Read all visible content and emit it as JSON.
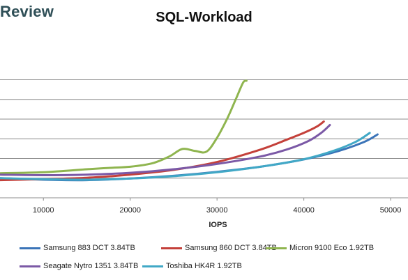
{
  "header": {
    "brand": "Review"
  },
  "chart_data": {
    "type": "line",
    "title": "SQL-Workload",
    "xlabel": "IOPS",
    "ylabel": "",
    "xlim": [
      5000,
      52000
    ],
    "ylim": [
      0,
      8
    ],
    "xticks": [
      10000,
      20000,
      30000,
      40000,
      50000
    ],
    "yticks": [
      1,
      2,
      3,
      4,
      5,
      6
    ],
    "grid": "horizontal",
    "legend_position": "bottom",
    "series": [
      {
        "name": "Samsung 883 DCT 3.84TB",
        "color": "#3b74b8",
        "x": [
          5000,
          10000,
          15000,
          20000,
          25000,
          30000,
          35000,
          40000,
          44000,
          47000,
          48500
        ],
        "y": [
          1.0,
          0.92,
          0.9,
          0.98,
          1.12,
          1.32,
          1.58,
          1.95,
          2.38,
          2.85,
          3.22
        ]
      },
      {
        "name": "Samsung 860 DCT 3.84TB",
        "color": "#c4403a",
        "x": [
          5000,
          10000,
          15000,
          20000,
          25000,
          30000,
          35000,
          38000,
          40000,
          41500,
          42300
        ],
        "y": [
          0.9,
          0.95,
          1.02,
          1.18,
          1.42,
          1.82,
          2.45,
          2.95,
          3.3,
          3.62,
          3.88
        ]
      },
      {
        "name": "Micron 9100 Eco 1.92TB",
        "color": "#8fb54f",
        "x": [
          5000,
          10000,
          15000,
          17500,
          20000,
          22500,
          24500,
          26000,
          27500,
          28800,
          30000,
          31200,
          32200,
          33000,
          33400
        ],
        "y": [
          1.25,
          1.3,
          1.45,
          1.52,
          1.58,
          1.75,
          2.1,
          2.48,
          2.38,
          2.35,
          3.05,
          4.05,
          5.05,
          5.85,
          5.95
        ]
      },
      {
        "name": "Seagate Nytro 1351 3.84TB",
        "color": "#7b59a6",
        "x": [
          5000,
          10000,
          15000,
          20000,
          25000,
          30000,
          35000,
          38000,
          40500,
          42000,
          43000
        ],
        "y": [
          1.18,
          1.15,
          1.18,
          1.27,
          1.45,
          1.72,
          2.1,
          2.45,
          2.88,
          3.3,
          3.7
        ]
      },
      {
        "name": "Toshiba HK4R 1.92TB",
        "color": "#41a8c6",
        "x": [
          5000,
          10000,
          15000,
          20000,
          25000,
          30000,
          35000,
          40000,
          43500,
          46000,
          47600
        ],
        "y": [
          1.0,
          0.95,
          0.92,
          0.98,
          1.1,
          1.3,
          1.58,
          1.96,
          2.4,
          2.85,
          3.3
        ]
      }
    ]
  }
}
